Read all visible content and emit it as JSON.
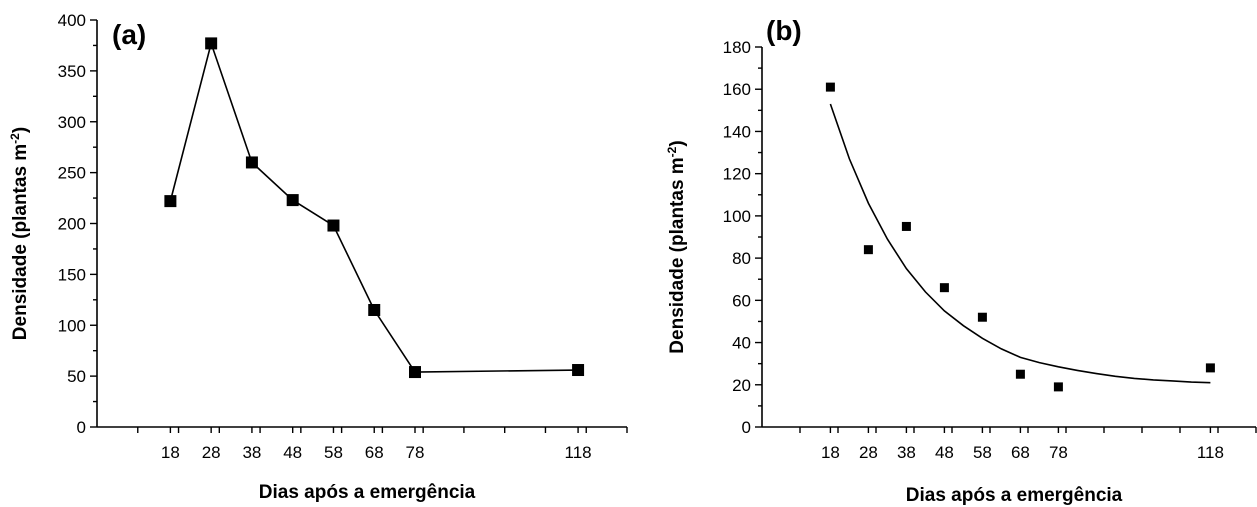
{
  "chart_data": [
    {
      "type": "line",
      "panel_label": "(a)",
      "xlabel": "Dias após a emergência",
      "ylabel_main": "Densidade (plantas m",
      "ylabel_sup": "-2",
      "ylabel_close": ")",
      "xlim": [
        0,
        130
      ],
      "ylim": [
        0,
        400
      ],
      "xticks": [
        18,
        28,
        38,
        48,
        58,
        68,
        78,
        118
      ],
      "xtick_labels": [
        "18",
        "28",
        "38",
        "48",
        "58",
        "68",
        "78",
        "118"
      ],
      "yticks": [
        0,
        50,
        100,
        150,
        200,
        250,
        300,
        350,
        400
      ],
      "ytick_labels": [
        "0",
        "50",
        "100",
        "150",
        "200",
        "250",
        "300",
        "350",
        "400"
      ],
      "grid": false,
      "series": [
        {
          "x": [
            18,
            28,
            38,
            48,
            58,
            68,
            78,
            118
          ],
          "y": [
            222,
            377,
            260,
            223,
            198,
            115,
            54,
            56
          ]
        }
      ]
    },
    {
      "type": "scatter",
      "panel_label": "(b)",
      "xlabel": "Dias após a emergência",
      "ylabel_main": "Densidade (plantas m",
      "ylabel_sup": "-2",
      "ylabel_close": ")",
      "xlim": [
        0,
        130
      ],
      "ylim": [
        0,
        180
      ],
      "xticks": [
        18,
        28,
        38,
        48,
        58,
        68,
        78,
        118
      ],
      "xtick_labels": [
        "18",
        "28",
        "38",
        "48",
        "58",
        "68",
        "78",
        "118"
      ],
      "yticks": [
        0,
        20,
        40,
        60,
        80,
        100,
        120,
        140,
        160,
        180
      ],
      "ytick_labels": [
        "0",
        "20",
        "40",
        "60",
        "80",
        "100",
        "120",
        "140",
        "160",
        "180"
      ],
      "grid": false,
      "series": [
        {
          "x": [
            18,
            28,
            38,
            48,
            58,
            68,
            78,
            118
          ],
          "y": [
            161,
            84,
            95,
            66,
            52,
            25,
            19,
            28
          ]
        }
      ],
      "fit_curve": {
        "x": [
          18,
          23,
          28,
          33,
          38,
          43,
          48,
          53,
          58,
          63,
          68,
          73,
          78,
          83,
          88,
          93,
          98,
          103,
          108,
          113,
          118
        ],
        "y": [
          153,
          127,
          106,
          89,
          75,
          64,
          55,
          48,
          42,
          37,
          33,
          30.5,
          28.5,
          26.8,
          25.3,
          24,
          23,
          22.3,
          21.8,
          21.3,
          21
        ]
      }
    }
  ]
}
